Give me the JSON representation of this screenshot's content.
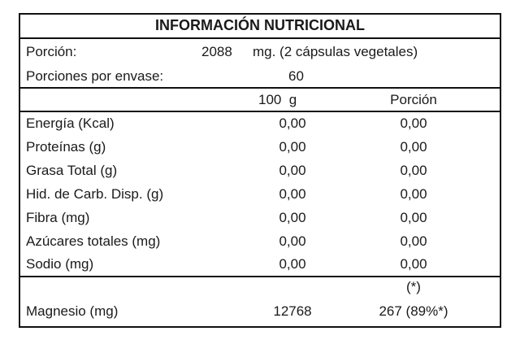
{
  "title": "INFORMACIÓN NUTRICIONAL",
  "serving": {
    "label": "Porción:",
    "amount": "2088",
    "unit_desc": "mg. (2 cápsulas vegetales)"
  },
  "servings_per_container": {
    "label": "Porciones por envase:",
    "value": "60"
  },
  "columns": {
    "per100": "100  g",
    "per_serving": "Porción"
  },
  "nutrients": [
    {
      "name": "Energía (Kcal)",
      "per100": "0,00",
      "per_serving": "0,00"
    },
    {
      "name": "Proteínas (g)",
      "per100": "0,00",
      "per_serving": "0,00"
    },
    {
      "name": "Grasa Total (g)",
      "per100": "0,00",
      "per_serving": "0,00"
    },
    {
      "name": "Hid. de Carb. Disp. (g)",
      "per100": "0,00",
      "per_serving": "0,00"
    },
    {
      "name": "Fibra (mg)",
      "per100": "0,00",
      "per_serving": "0,00"
    },
    {
      "name": "Azúcares totales (mg)",
      "per100": "0,00",
      "per_serving": "0,00"
    },
    {
      "name": "Sodio (mg)",
      "per100": "0,00",
      "per_serving": "0,00"
    }
  ],
  "footnote_mark": "(*)",
  "magnesium": {
    "name": "Magnesio (mg)",
    "per100": "12768",
    "per_serving": "267 (89%*)"
  }
}
